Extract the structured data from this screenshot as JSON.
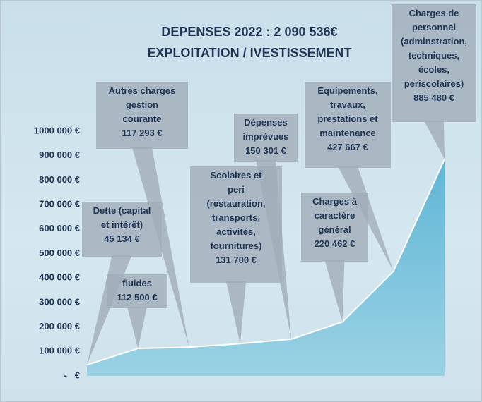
{
  "chart_data": {
    "type": "area",
    "title": "DEPENSES 2022 : 2 090 536€",
    "subtitle": "EXPLOITATION / IVESTISSEMENT",
    "categories": [
      "Dette (capital\net intérêt)",
      "fluides",
      "Autres charges\ngestion\ncourante",
      "Scolaires et\nperi\n(restauration,\ntransports,\nactivités,\nfournitures)",
      "Dépenses\nimprévues",
      "Charges à\ncaractère\ngénéral",
      "Equipements,\ntravaux,\nprestations et\nmaintenance",
      "Charges de\npersonnel\n(adminstration,\ntechniques,\nécoles,\nperiscolaires)"
    ],
    "values": [
      45134,
      112500,
      117293,
      131700,
      150301,
      220462,
      427667,
      885480
    ],
    "value_labels": [
      "45 134 €",
      "112 500 €",
      "117 293 €",
      "131 700 €",
      "150 301 €",
      "220 462 €",
      "427 667 €",
      "885 480 €"
    ],
    "color": "#7cc3dc",
    "ylim": [
      0,
      1000000
    ],
    "yticks": [
      {
        "value": 0,
        "label": "-   €"
      },
      {
        "value": 100000,
        "label": "100 000 €"
      },
      {
        "value": 200000,
        "label": "200 000 €"
      },
      {
        "value": 300000,
        "label": "300 000 €"
      },
      {
        "value": 400000,
        "label": "400 000 €"
      },
      {
        "value": 500000,
        "label": "500 000 €"
      },
      {
        "value": 600000,
        "label": "600 000 €"
      },
      {
        "value": 700000,
        "label": "700 000 €"
      },
      {
        "value": 800000,
        "label": "800 000 €"
      },
      {
        "value": 900000,
        "label": "900 000 €"
      },
      {
        "value": 1000000,
        "label": "1000 000 €"
      }
    ]
  }
}
